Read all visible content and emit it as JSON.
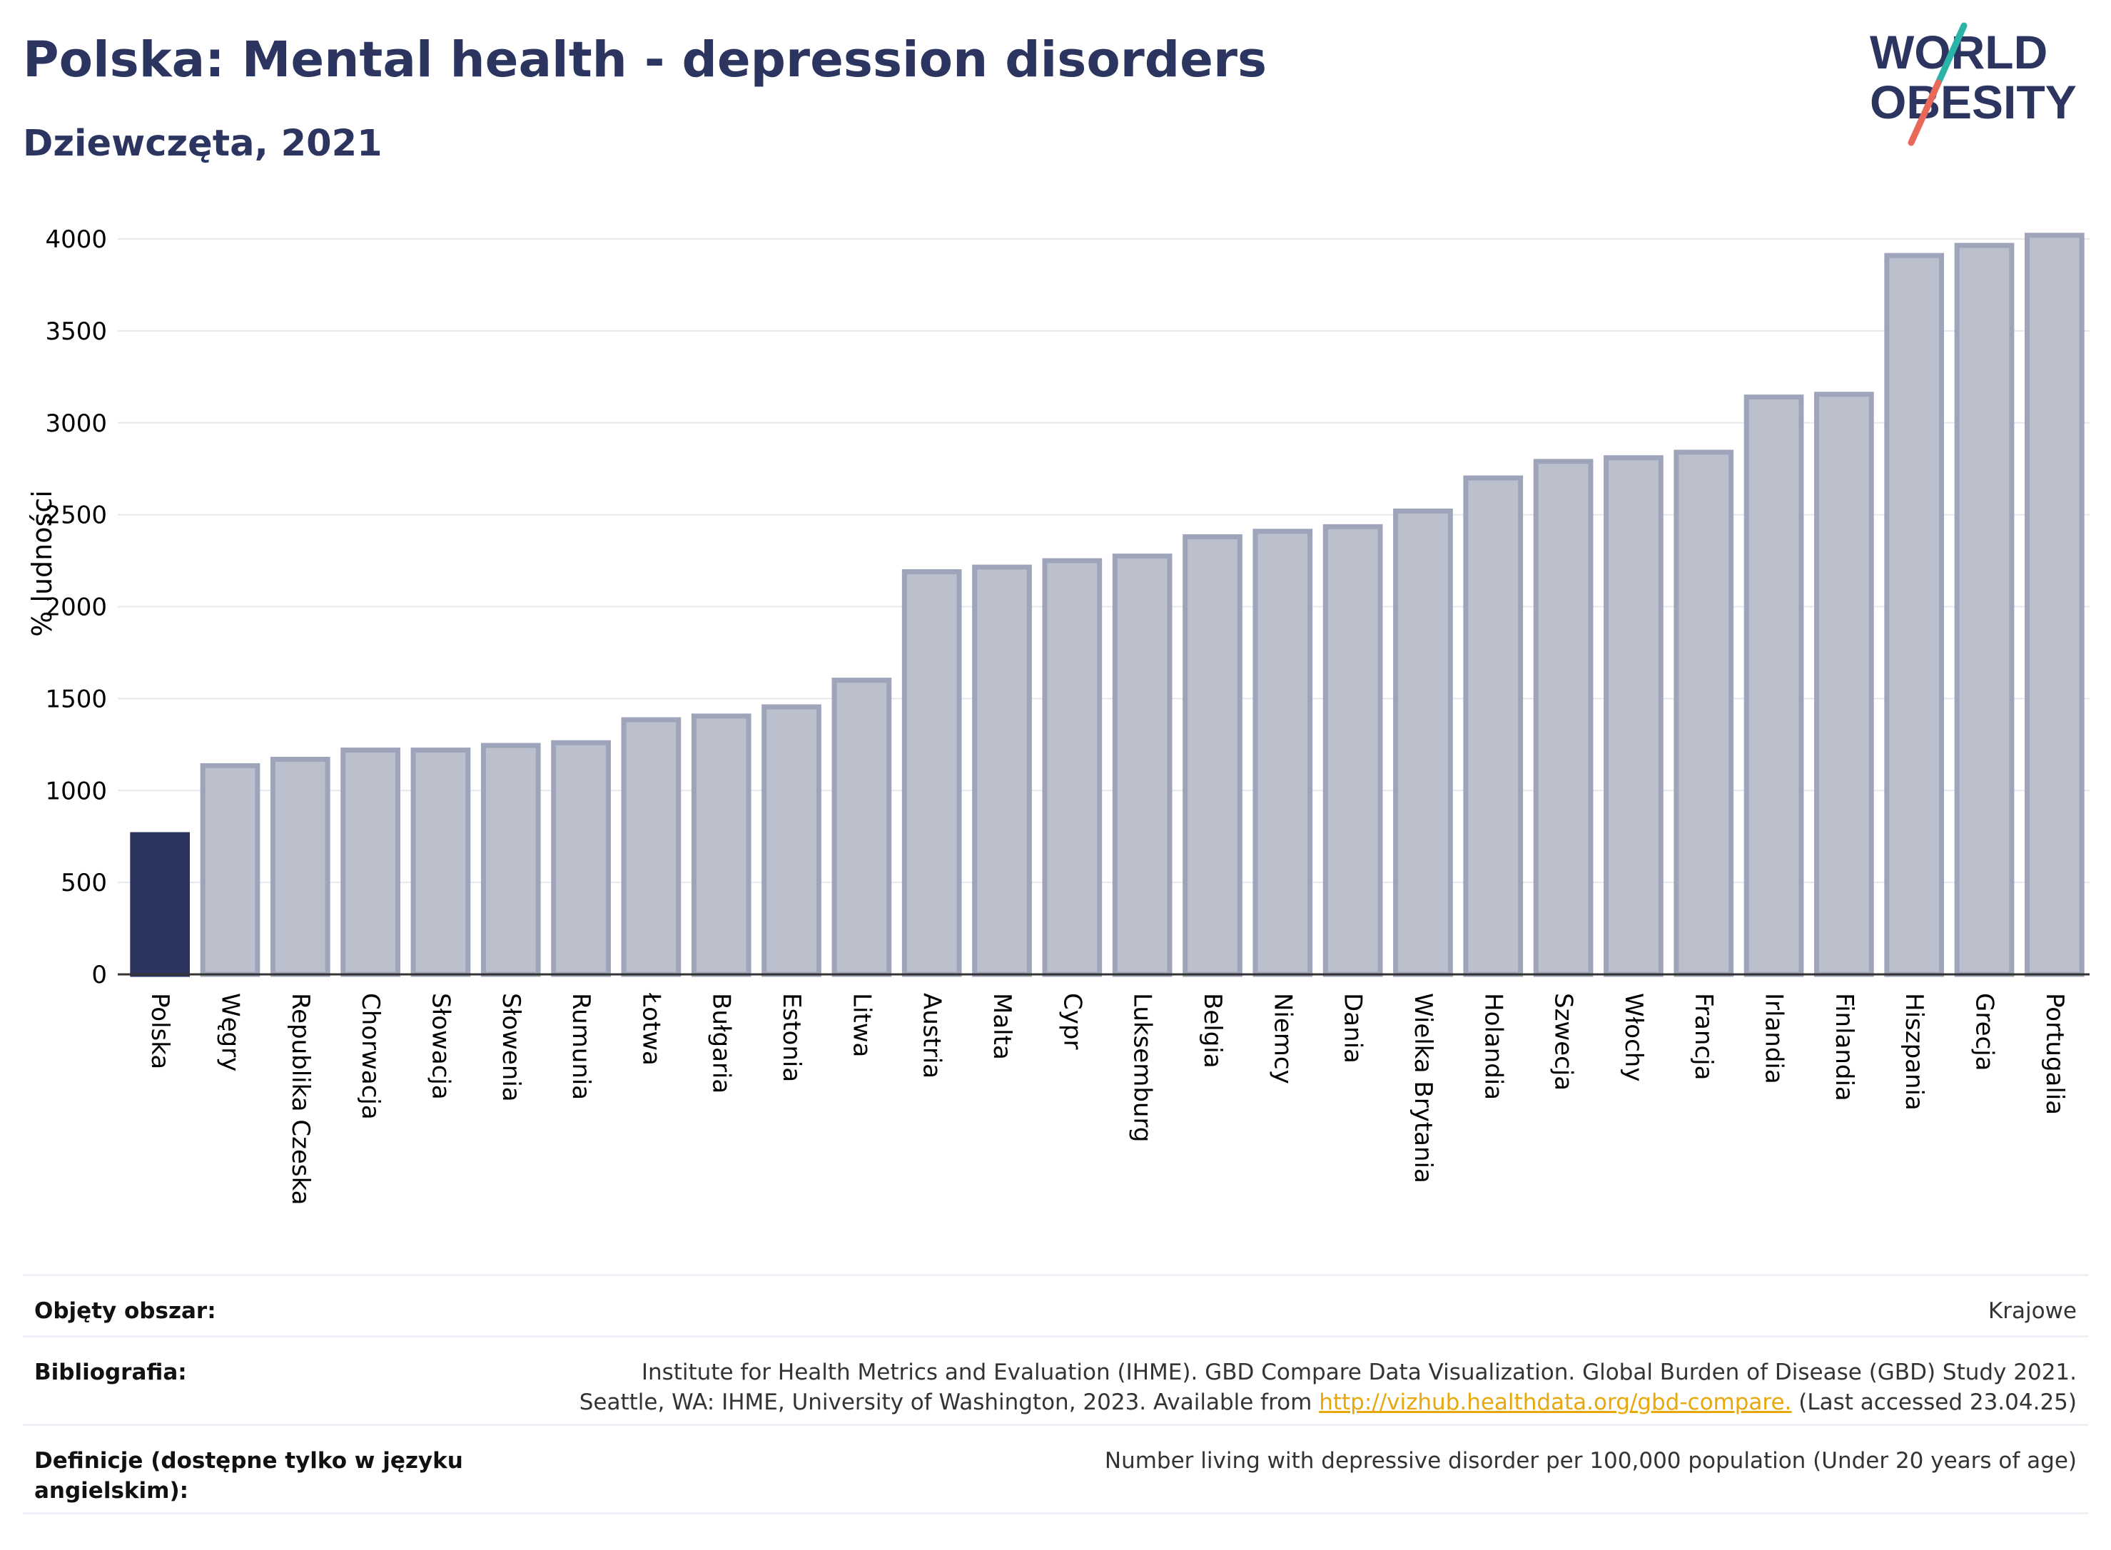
{
  "header": {
    "title": "Polska: Mental health - depression disorders",
    "subtitle": "Dziewczęta, 2021"
  },
  "logo": {
    "line1": "WORLD",
    "line2": "OBESITY"
  },
  "colors": {
    "highlight": "#2b3560",
    "bar": "#bcc0cd",
    "bar_edge": "#9ea4ba",
    "title": "#2b3560",
    "link": "#e8a80c"
  },
  "chart_data": {
    "type": "bar",
    "ylabel": "% ludności",
    "ylim": [
      0,
      4000
    ],
    "yticks": [
      0,
      500,
      1000,
      1500,
      2000,
      2500,
      3000,
      3500,
      4000
    ],
    "grid": true,
    "highlight": "Polska",
    "categories": [
      "Polska",
      "Węgry",
      "Republika Czeska",
      "Chorwacja",
      "Słowacja",
      "Słowenia",
      "Rumunia",
      "Łotwa",
      "Bułgaria",
      "Estonia",
      "Litwa",
      "Austria",
      "Malta",
      "Cypr",
      "Luksemburg",
      "Belgia",
      "Niemcy",
      "Dania",
      "Wielka Brytania",
      "Holandia",
      "Szwecja",
      "Włochy",
      "Francja",
      "Irlandia",
      "Finlandia",
      "Hiszpania",
      "Grecja",
      "Portugalia"
    ],
    "values": [
      760,
      1135,
      1170,
      1220,
      1220,
      1245,
      1260,
      1385,
      1405,
      1455,
      1600,
      2190,
      2215,
      2250,
      2275,
      2380,
      2410,
      2435,
      2520,
      2700,
      2790,
      2810,
      2840,
      3140,
      3155,
      3910,
      3965,
      4020
    ]
  },
  "info": {
    "coverage_label": "Objęty obszar:",
    "coverage_value": "Krajowe",
    "bibliography_label": "Bibliografia:",
    "bibliography_line1": "Institute for Health Metrics and Evaluation (IHME). GBD Compare Data Visualization. Global Burden of Disease (GBD) Study 2021.",
    "bibliography_line2_pre": "Seattle, WA: IHME, University of Washington, 2023. Available from ",
    "bibliography_link": "http://vizhub.healthdata.org/gbd-compare.",
    "bibliography_line2_post": " (Last accessed 23.04.25)",
    "definitions_label_line1": "Definicje (dostępne tylko w języku",
    "definitions_label_line2": "angielskim):",
    "definitions_value": "Number living with depressive disorder per 100,000 population (Under 20 years of age)"
  }
}
